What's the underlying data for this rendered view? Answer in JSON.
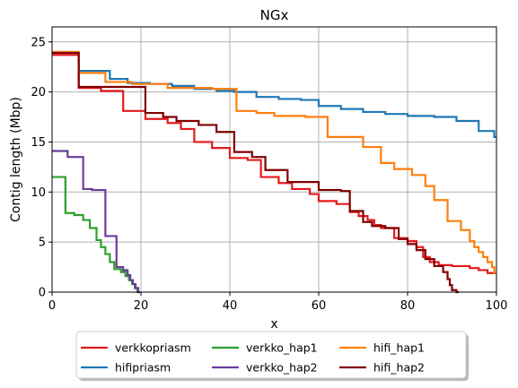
{
  "chart_data": {
    "type": "line",
    "title": "NGx",
    "xlabel": "x",
    "ylabel": "Contig length (Mbp)",
    "xlim": [
      0,
      100
    ],
    "ylim": [
      0,
      26.5
    ],
    "xticks": [
      0,
      20,
      40,
      60,
      80,
      100
    ],
    "yticks": [
      0,
      5,
      10,
      15,
      20,
      25
    ],
    "grid": true,
    "step": true,
    "legend": {
      "placement": "below-center",
      "columns": 3
    },
    "series": [
      {
        "name": "verkkopriasm",
        "color": "#e41a1c",
        "points": [
          [
            0,
            23.7
          ],
          [
            6,
            23.7
          ],
          [
            6,
            20.4
          ],
          [
            11,
            20.4
          ],
          [
            11,
            20.1
          ],
          [
            16,
            20.1
          ],
          [
            16,
            18.1
          ],
          [
            21,
            18.1
          ],
          [
            21,
            17.3
          ],
          [
            26,
            17.3
          ],
          [
            26,
            16.9
          ],
          [
            29,
            16.9
          ],
          [
            29,
            16.3
          ],
          [
            32,
            16.3
          ],
          [
            32,
            15.0
          ],
          [
            36,
            15.0
          ],
          [
            36,
            14.4
          ],
          [
            40,
            14.4
          ],
          [
            40,
            13.4
          ],
          [
            44,
            13.4
          ],
          [
            44,
            13.2
          ],
          [
            47,
            13.2
          ],
          [
            47,
            11.5
          ],
          [
            51,
            11.5
          ],
          [
            51,
            10.9
          ],
          [
            54,
            10.9
          ],
          [
            54,
            10.3
          ],
          [
            58,
            10.3
          ],
          [
            58,
            9.8
          ],
          [
            60,
            9.8
          ],
          [
            60,
            9.1
          ],
          [
            64,
            9.1
          ],
          [
            64,
            8.8
          ],
          [
            67,
            8.8
          ],
          [
            67,
            8.0
          ],
          [
            69,
            8.0
          ],
          [
            69,
            7.6
          ],
          [
            71,
            7.6
          ],
          [
            71,
            7.2
          ],
          [
            72.5,
            7.2
          ],
          [
            72.5,
            6.7
          ],
          [
            74,
            6.7
          ],
          [
            74,
            6.4
          ],
          [
            77,
            6.4
          ],
          [
            77,
            5.4
          ],
          [
            80,
            5.4
          ],
          [
            80,
            5.1
          ],
          [
            82,
            5.1
          ],
          [
            82,
            4.5
          ],
          [
            83.5,
            4.5
          ],
          [
            83.5,
            3.5
          ],
          [
            85,
            3.5
          ],
          [
            85,
            3.0
          ],
          [
            87,
            3.0
          ],
          [
            87,
            2.7
          ],
          [
            90,
            2.7
          ],
          [
            90,
            2.6
          ],
          [
            94,
            2.6
          ],
          [
            94,
            2.4
          ],
          [
            96,
            2.4
          ],
          [
            96,
            2.2
          ],
          [
            98,
            2.2
          ],
          [
            98,
            1.9
          ],
          [
            100,
            1.9
          ]
        ]
      },
      {
        "name": "hifipriasm",
        "color": "#1f77b4",
        "points": [
          [
            0,
            24.0
          ],
          [
            6,
            24.0
          ],
          [
            6,
            22.1
          ],
          [
            13,
            22.1
          ],
          [
            13,
            21.3
          ],
          [
            17,
            21.3
          ],
          [
            17,
            20.9
          ],
          [
            22,
            20.9
          ],
          [
            22,
            20.8
          ],
          [
            27,
            20.8
          ],
          [
            27,
            20.6
          ],
          [
            32,
            20.6
          ],
          [
            32,
            20.3
          ],
          [
            37,
            20.3
          ],
          [
            37,
            20.1
          ],
          [
            41,
            20.1
          ],
          [
            41,
            20.0
          ],
          [
            46,
            20.0
          ],
          [
            46,
            19.5
          ],
          [
            51,
            19.5
          ],
          [
            51,
            19.3
          ],
          [
            56,
            19.3
          ],
          [
            56,
            19.2
          ],
          [
            60,
            19.2
          ],
          [
            60,
            18.6
          ],
          [
            65,
            18.6
          ],
          [
            65,
            18.3
          ],
          [
            70,
            18.3
          ],
          [
            70,
            18.0
          ],
          [
            75,
            18.0
          ],
          [
            75,
            17.8
          ],
          [
            80,
            17.8
          ],
          [
            80,
            17.6
          ],
          [
            86,
            17.6
          ],
          [
            86,
            17.5
          ],
          [
            91,
            17.5
          ],
          [
            91,
            17.1
          ],
          [
            96,
            17.1
          ],
          [
            96,
            16.1
          ],
          [
            99.5,
            16.1
          ],
          [
            99.5,
            15.5
          ],
          [
            100,
            15.5
          ]
        ]
      },
      {
        "name": "verkko_hap1",
        "color": "#2ca02c",
        "points": [
          [
            0,
            11.5
          ],
          [
            3,
            11.5
          ],
          [
            3,
            7.9
          ],
          [
            5,
            7.9
          ],
          [
            5,
            7.7
          ],
          [
            7,
            7.7
          ],
          [
            7,
            7.2
          ],
          [
            8.5,
            7.2
          ],
          [
            8.5,
            6.4
          ],
          [
            10,
            6.4
          ],
          [
            10,
            5.2
          ],
          [
            11,
            5.2
          ],
          [
            11,
            4.5
          ],
          [
            12,
            4.5
          ],
          [
            12,
            3.8
          ],
          [
            13,
            3.8
          ],
          [
            13,
            3.0
          ],
          [
            14,
            3.0
          ],
          [
            14,
            2.3
          ],
          [
            15.5,
            2.3
          ],
          [
            15.5,
            2.0
          ],
          [
            16.5,
            2.0
          ],
          [
            16.5,
            1.6
          ],
          [
            17.3,
            1.6
          ],
          [
            17.3,
            1.2
          ],
          [
            18,
            1.2
          ],
          [
            18,
            0.8
          ],
          [
            18.6,
            0.8
          ],
          [
            18.6,
            0.4
          ],
          [
            19.2,
            0.4
          ],
          [
            19.2,
            0.0
          ],
          [
            19.5,
            0.0
          ]
        ]
      },
      {
        "name": "verkko_hap2",
        "color": "#6a3d9a",
        "points": [
          [
            0,
            14.1
          ],
          [
            3.5,
            14.1
          ],
          [
            3.5,
            13.5
          ],
          [
            7,
            13.5
          ],
          [
            7,
            10.3
          ],
          [
            9,
            10.3
          ],
          [
            9,
            10.2
          ],
          [
            12,
            10.2
          ],
          [
            12,
            5.6
          ],
          [
            14.5,
            5.6
          ],
          [
            14.5,
            2.5
          ],
          [
            16,
            2.5
          ],
          [
            16,
            2.2
          ],
          [
            17,
            2.2
          ],
          [
            17,
            1.7
          ],
          [
            17.6,
            1.7
          ],
          [
            17.6,
            1.2
          ],
          [
            18.2,
            1.2
          ],
          [
            18.2,
            0.8
          ],
          [
            18.8,
            0.8
          ],
          [
            18.8,
            0.4
          ],
          [
            19.4,
            0.4
          ],
          [
            19.4,
            0.0
          ],
          [
            19.8,
            0.0
          ]
        ]
      },
      {
        "name": "hifi_hap1",
        "color": "#ff7f0e",
        "points": [
          [
            0,
            24.0
          ],
          [
            6,
            24.0
          ],
          [
            6,
            21.9
          ],
          [
            12,
            21.9
          ],
          [
            12,
            21.0
          ],
          [
            18,
            21.0
          ],
          [
            18,
            20.8
          ],
          [
            26,
            20.8
          ],
          [
            26,
            20.4
          ],
          [
            36,
            20.4
          ],
          [
            36,
            20.3
          ],
          [
            41.5,
            20.3
          ],
          [
            41.5,
            18.1
          ],
          [
            46,
            18.1
          ],
          [
            46,
            17.9
          ],
          [
            50,
            17.9
          ],
          [
            50,
            17.6
          ],
          [
            57,
            17.6
          ],
          [
            57,
            17.5
          ],
          [
            62,
            17.5
          ],
          [
            62,
            15.5
          ],
          [
            70,
            15.5
          ],
          [
            70,
            14.5
          ],
          [
            74,
            14.5
          ],
          [
            74,
            12.9
          ],
          [
            77,
            12.9
          ],
          [
            77,
            12.3
          ],
          [
            81,
            12.3
          ],
          [
            81,
            11.7
          ],
          [
            84,
            11.7
          ],
          [
            84,
            10.6
          ],
          [
            86,
            10.6
          ],
          [
            86,
            9.2
          ],
          [
            89,
            9.2
          ],
          [
            89,
            7.1
          ],
          [
            92,
            7.1
          ],
          [
            92,
            6.2
          ],
          [
            94,
            6.2
          ],
          [
            94,
            5.1
          ],
          [
            95,
            5.1
          ],
          [
            95,
            4.5
          ],
          [
            96,
            4.5
          ],
          [
            96,
            4.0
          ],
          [
            97,
            4.0
          ],
          [
            97,
            3.5
          ],
          [
            98,
            3.5
          ],
          [
            98,
            3.0
          ],
          [
            99,
            3.0
          ],
          [
            99,
            2.5
          ],
          [
            99.5,
            2.5
          ],
          [
            99.5,
            1.9
          ],
          [
            100,
            1.9
          ]
        ]
      },
      {
        "name": "hifi_hap2",
        "color": "#800000",
        "points": [
          [
            0,
            23.9
          ],
          [
            6,
            23.9
          ],
          [
            6,
            20.5
          ],
          [
            21,
            20.5
          ],
          [
            21,
            17.9
          ],
          [
            25,
            17.9
          ],
          [
            25,
            17.5
          ],
          [
            28,
            17.5
          ],
          [
            28,
            17.1
          ],
          [
            33,
            17.1
          ],
          [
            33,
            16.7
          ],
          [
            37,
            16.7
          ],
          [
            37,
            16.0
          ],
          [
            41,
            16.0
          ],
          [
            41,
            14.0
          ],
          [
            45,
            14.0
          ],
          [
            45,
            13.5
          ],
          [
            48,
            13.5
          ],
          [
            48,
            12.2
          ],
          [
            53,
            12.2
          ],
          [
            53,
            11.0
          ],
          [
            60,
            11.0
          ],
          [
            60,
            10.2
          ],
          [
            65,
            10.2
          ],
          [
            65,
            10.1
          ],
          [
            67,
            10.1
          ],
          [
            67,
            8.1
          ],
          [
            70,
            8.1
          ],
          [
            70,
            7.0
          ],
          [
            72,
            7.0
          ],
          [
            72,
            6.6
          ],
          [
            75,
            6.6
          ],
          [
            75,
            6.4
          ],
          [
            78,
            6.4
          ],
          [
            78,
            5.3
          ],
          [
            80,
            5.3
          ],
          [
            80,
            4.8
          ],
          [
            82,
            4.8
          ],
          [
            82,
            4.2
          ],
          [
            84,
            4.2
          ],
          [
            84,
            3.3
          ],
          [
            86,
            3.3
          ],
          [
            86,
            2.6
          ],
          [
            88,
            2.6
          ],
          [
            88,
            2.0
          ],
          [
            89,
            2.0
          ],
          [
            89,
            1.3
          ],
          [
            89.5,
            1.3
          ],
          [
            89.5,
            0.7
          ],
          [
            90,
            0.7
          ],
          [
            90,
            0.2
          ],
          [
            91,
            0.2
          ],
          [
            91,
            0.0
          ],
          [
            91.5,
            0.0
          ]
        ]
      }
    ]
  }
}
